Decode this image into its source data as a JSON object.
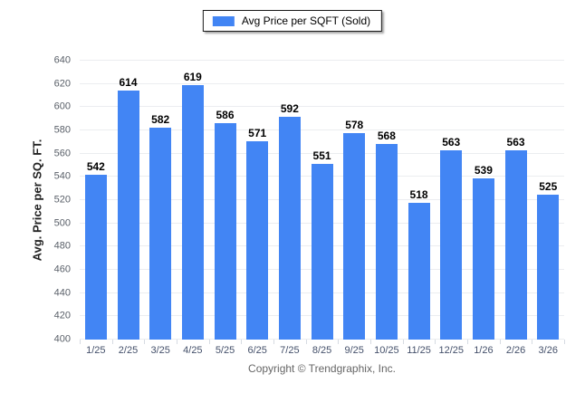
{
  "legend": {
    "label": "Avg Price per SQFT (Sold)"
  },
  "chart_data": {
    "type": "bar",
    "title": "",
    "categories": [
      "1/25",
      "2/25",
      "3/25",
      "4/25",
      "5/25",
      "6/25",
      "7/25",
      "8/25",
      "9/25",
      "10/25",
      "11/25",
      "12/25",
      "1/26",
      "2/26",
      "3/26"
    ],
    "values": [
      542,
      614,
      582,
      619,
      586,
      571,
      592,
      551,
      578,
      568,
      518,
      563,
      539,
      563,
      525
    ],
    "xlabel": "",
    "ylabel": "Avg. Price per SQ. FT.",
    "ylim": [
      400,
      640
    ],
    "ytick_step": 20,
    "grid": "horizontal",
    "legend_position": "top",
    "value_labels": "above-bars"
  },
  "footer": {
    "copyright": "Copyright © Trendgraphix, Inc."
  },
  "colors": {
    "bar": "#4285F4",
    "grid": "#ebedf0",
    "y_tick_label": "#5a6069",
    "x_tick_label": "#44506a",
    "value_label": "#000000",
    "footer_text": "#666666",
    "legend_border": "#1a1a1a"
  }
}
